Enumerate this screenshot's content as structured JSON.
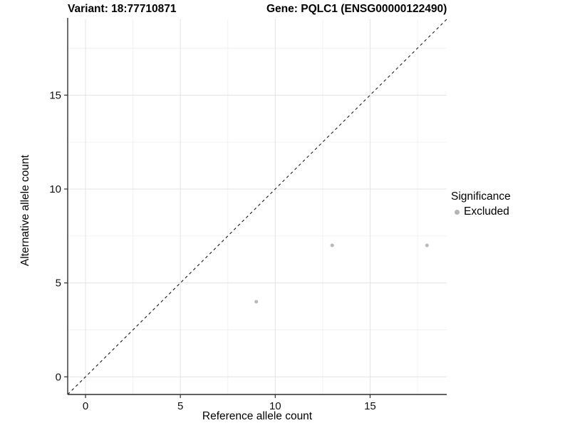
{
  "header": {
    "variant_title": "Variant: 18:77710871",
    "gene_title": "Gene: PQLC1 (ENSG00000122490)"
  },
  "chart_data": {
    "type": "scatter",
    "xlabel": "Reference allele count",
    "ylabel": "Alternative allele count",
    "xlim": [
      -0.94,
      19.04
    ],
    "ylim": [
      -0.94,
      19.04
    ],
    "x_ticks": {
      "major": [
        0,
        5,
        10,
        15
      ],
      "minor": [
        2.5,
        7.5,
        12.5,
        17.5
      ]
    },
    "y_ticks": {
      "major": [
        0,
        5,
        10,
        15
      ],
      "minor": [
        2.5,
        7.5,
        12.5,
        17.5
      ]
    },
    "grid": "major+minor",
    "series": [
      {
        "name": "Excluded",
        "color": "#b9b9b9",
        "points": [
          {
            "x": 9,
            "y": 4
          },
          {
            "x": 13,
            "y": 7
          },
          {
            "x": 18,
            "y": 7
          }
        ]
      }
    ],
    "reference_line": {
      "type": "identity",
      "slope": 1,
      "intercept": 0,
      "style": "dashed",
      "color": "#1a1a1a"
    },
    "legend": {
      "title": "Significance",
      "position": "right",
      "entries": [
        {
          "label": "Excluded",
          "color": "#b5b5b5",
          "marker": "circle"
        }
      ]
    }
  },
  "colors": {
    "background": "#ffffff",
    "grid_major": "#e3e3e3",
    "grid_minor": "#f1f1f1",
    "axis_line": "#2f2f2f",
    "tick_mark": "#2f2f2f",
    "text": "#000000"
  }
}
